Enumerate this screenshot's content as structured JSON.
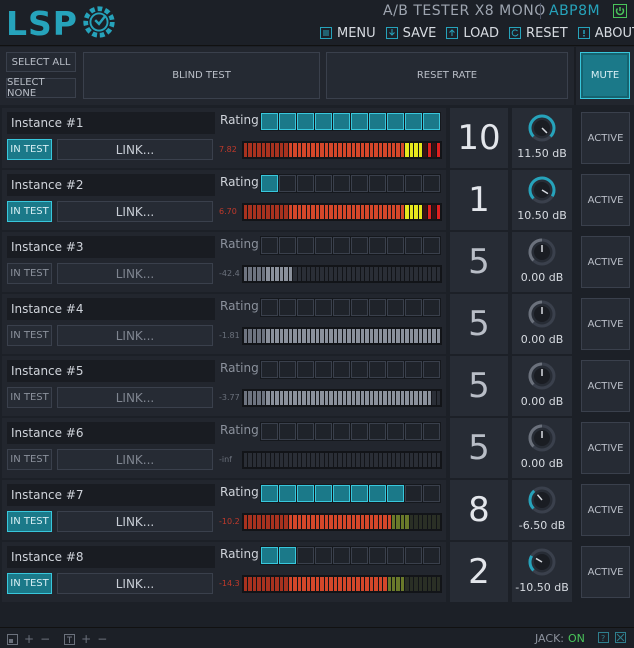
{
  "header": {
    "logo": "LSP",
    "title": "A/B TESTER X8 MONO",
    "code": "ABP8M",
    "menu": [
      {
        "label": "MENU",
        "icon": "menu-icon"
      },
      {
        "label": "SAVE",
        "icon": "save-icon"
      },
      {
        "label": "LOAD",
        "icon": "load-icon"
      },
      {
        "label": "RESET",
        "icon": "reset-icon"
      },
      {
        "label": "ABOUT",
        "icon": "about-icon"
      }
    ]
  },
  "controls": {
    "select_all": "SELECT ALL",
    "select_none": "SELECT NONE",
    "blind_test": "BLIND TEST",
    "reset_rate": "RESET RATE",
    "mute": "MUTE"
  },
  "rating_label": "Rating",
  "in_test_label": "IN TEST",
  "link_label": "LINK...",
  "active_label": "ACTIVE",
  "accent_color": "#26a3bb",
  "instances": [
    {
      "name": "Instance #1",
      "in_test": true,
      "rating": 10,
      "score": "10",
      "gain": "11.50 dB",
      "meter_text": "7.82",
      "meter_level": 1.0,
      "knob": 1.0
    },
    {
      "name": "Instance #2",
      "in_test": true,
      "rating": 1,
      "score": "1",
      "gain": "10.50 dB",
      "meter_text": "6.70",
      "meter_level": 1.0,
      "knob": 0.95
    },
    {
      "name": "Instance #3",
      "in_test": false,
      "rating": 0,
      "score": "5",
      "gain": "0.00 dB",
      "meter_text": "-42.4",
      "meter_level": 0.25,
      "knob": 0.5
    },
    {
      "name": "Instance #4",
      "in_test": false,
      "rating": 0,
      "score": "5",
      "gain": "0.00 dB",
      "meter_text": "-1.81",
      "meter_level": 1.0,
      "knob": 0.5
    },
    {
      "name": "Instance #5",
      "in_test": false,
      "rating": 0,
      "score": "5",
      "gain": "0.00 dB",
      "meter_text": "-3.77",
      "meter_level": 0.95,
      "knob": 0.5
    },
    {
      "name": "Instance #6",
      "in_test": false,
      "rating": 0,
      "score": "5",
      "gain": "0.00 dB",
      "meter_text": "-inf",
      "meter_level": 0.0,
      "knob": 0.5
    },
    {
      "name": "Instance #7",
      "in_test": true,
      "rating": 8,
      "score": "8",
      "gain": "-6.50 dB",
      "meter_text": "-10.2",
      "meter_level": 0.76,
      "knob": 0.35
    },
    {
      "name": "Instance #8",
      "in_test": true,
      "rating": 2,
      "score": "2",
      "gain": "-10.50 dB",
      "meter_text": "-14.3",
      "meter_level": 0.72,
      "knob": 0.28
    }
  ],
  "footer": {
    "jack_label": "JACK:",
    "jack_status": "ON"
  }
}
